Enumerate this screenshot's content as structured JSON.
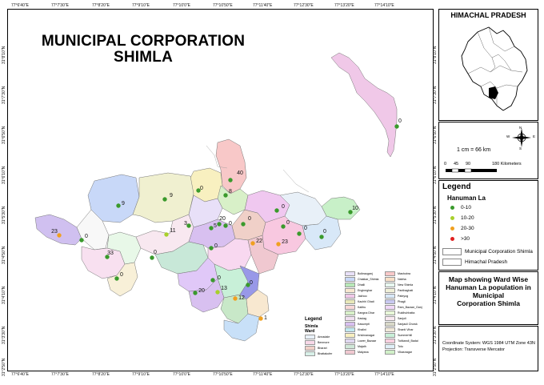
{
  "map": {
    "title_line1": "MUNICIPAL CORPORATION",
    "title_line2": "SHIMLA",
    "top_ticks": [
      "77°6'40\"E",
      "77°7'30\"E",
      "77°8'20\"E",
      "77°9'10\"E",
      "77°10'0\"E",
      "77°10'50\"E",
      "77°11'40\"E",
      "77°12'30\"E",
      "77°13'20\"E",
      "77°14'10\"E"
    ],
    "bottom_ticks": [
      "77°6'40\"E",
      "77°7'30\"E",
      "77°8'20\"E",
      "77°9'10\"E",
      "77°10'0\"E",
      "77°10'50\"E",
      "77°11'40\"E",
      "77°12'30\"E",
      "77°13'20\"E",
      "77°14'10\"E"
    ],
    "left_ticks": [
      "31°8'10\"N",
      "31°7'30\"N",
      "31°6'50\"N",
      "31°6'10\"N",
      "31°5'30\"N",
      "31°4'50\"N",
      "31°4'10\"N",
      "31°3'30\"N",
      "31°2'50\"N"
    ],
    "right_ticks": [
      "31°8'10\"N",
      "31°7'30\"N",
      "31°6'50\"N",
      "31°6'10\"N",
      "31°5'30\"N",
      "31°4'50\"N",
      "31°4'10\"N",
      "31°3'30\"N",
      "31°2'50\"N"
    ],
    "ward_values": [
      "0",
      "9",
      "9",
      "0",
      "40",
      "8",
      "0",
      "10",
      "23",
      "0",
      "33",
      "0",
      "11",
      "3",
      "5",
      "20",
      "0",
      "0",
      "0",
      "0",
      "0",
      "0",
      "22",
      "23",
      "0",
      "0",
      "13",
      "12",
      "0",
      "20",
      "1"
    ]
  },
  "inset": {
    "title": "HIMACHAL PRADESH"
  },
  "scale": {
    "ratio": "1 cm = 66 km",
    "ticks": [
      "0",
      "45",
      "90",
      "180 Kilometers"
    ],
    "north_labels": [
      "N",
      "E",
      "S",
      "W"
    ]
  },
  "legend": {
    "title": "Legend",
    "subtitle": "Hanuman La",
    "classes": [
      {
        "label": "0-10",
        "color": "#3a9a2c"
      },
      {
        "label": "10-20",
        "color": "#a8d02c"
      },
      {
        "label": "20-30",
        "color": "#f0a020"
      },
      {
        "label": ">30",
        "color": "#e02020"
      }
    ],
    "boundaries": [
      "Municipal Corporation Shimla",
      "Himachal Pradesh"
    ]
  },
  "caption": {
    "line1": "Map showing Ward Wise",
    "line2": "Hanuman La population in",
    "line3": "Municipal",
    "line4": "Corporation Shimla"
  },
  "coords": {
    "system": "Coordinate System: WGS 1984 UTM Zone 43N",
    "projection": "Projection: Transverse Mercator"
  },
  "ward_legend": {
    "title": "Legend",
    "layer": "Shimla",
    "field": "Ward",
    "col1": [
      {
        "name": "Annadale",
        "color": "#e8f0f8"
      },
      {
        "name": "Benmore",
        "color": "#f8d8e8"
      },
      {
        "name": "Bharari",
        "color": "#f0d0c8"
      },
      {
        "name": "Bhattakufer",
        "color": "#d8f0e8"
      }
    ],
    "col2": [
      {
        "name": "Boileauganj",
        "color": "#e8e0f8"
      },
      {
        "name": "Chakkar_Shimla",
        "color": "#c8d8f8"
      },
      {
        "name": "Dhalli",
        "color": "#b8e8b8"
      },
      {
        "name": "Engineghar",
        "color": "#f8e8d0"
      },
      {
        "name": "Jakhoo",
        "color": "#f0c8e8"
      },
      {
        "name": "Kachhi Ghati",
        "color": "#e8e8b8"
      },
      {
        "name": "Kaithu",
        "color": "#f8d8d8"
      },
      {
        "name": "Kangna Dhar",
        "color": "#d8f0c8"
      },
      {
        "name": "Kasiag",
        "color": "#f0e0f0"
      },
      {
        "name": "Kasumpti",
        "color": "#d8c0f0"
      },
      {
        "name": "Khalini",
        "color": "#c0e8f0"
      },
      {
        "name": "Krishnanagar",
        "color": "#f8f0c0"
      },
      {
        "name": "Lower_Bazaar",
        "color": "#e0d8f0"
      },
      {
        "name": "Majath",
        "color": "#d0e8d8"
      },
      {
        "name": "Malyana",
        "color": "#f0c8d0"
      }
    ],
    "col3": [
      {
        "name": "Mashobra",
        "color": "#f8c8c8"
      },
      {
        "name": "Nabha",
        "color": "#f8e0c8"
      },
      {
        "name": "New Shimla",
        "color": "#e8f8f0"
      },
      {
        "name": "Panthaghati",
        "color": "#f0f0d8"
      },
      {
        "name": "Pateyog",
        "color": "#d8e8f8"
      },
      {
        "name": "Phagli",
        "color": "#c8c8f0"
      },
      {
        "name": "Ram_Bazaar_Ganj",
        "color": "#f0d8f8"
      },
      {
        "name": "Ruldhuhhatta",
        "color": "#e8f8d8"
      },
      {
        "name": "Sanjoli",
        "color": "#f8e8f0"
      },
      {
        "name": "Sanjauli Chowk",
        "color": "#d8d8c8"
      },
      {
        "name": "Shanti Vihar",
        "color": "#f0e8d8"
      },
      {
        "name": "Summerhill",
        "color": "#c8f0d8"
      },
      {
        "name": "Tutikandi_Badai",
        "color": "#f8d0e0"
      },
      {
        "name": "Totu",
        "color": "#e0f0f8"
      },
      {
        "name": "Vikasnagar",
        "color": "#d0f0c8"
      }
    ]
  }
}
